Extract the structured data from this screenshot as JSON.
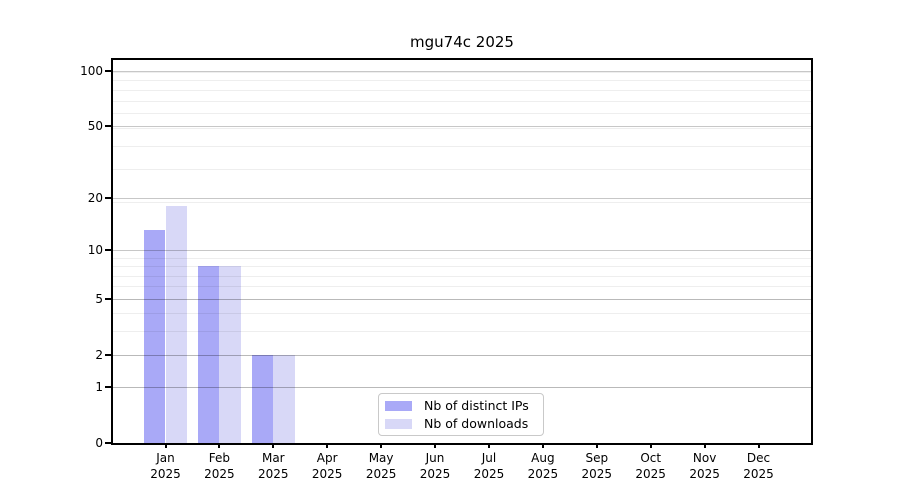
{
  "chart_data": {
    "type": "bar",
    "title": "mgu74c 2025",
    "categories": [
      "Jan",
      "Feb",
      "Mar",
      "Apr",
      "May",
      "Jun",
      "Jul",
      "Aug",
      "Sep",
      "Oct",
      "Nov",
      "Dec"
    ],
    "category_year": "2025",
    "series": [
      {
        "name": "Nb of distinct IPs",
        "color": "#a9a9f7",
        "values": [
          13,
          8,
          2,
          0,
          0,
          0,
          0,
          0,
          0,
          0,
          0,
          0
        ]
      },
      {
        "name": "Nb of downloads",
        "color": "#d8d8f7",
        "values": [
          18,
          8,
          2,
          0,
          0,
          0,
          0,
          0,
          0,
          0,
          0,
          0
        ]
      }
    ],
    "y_scale": "log1p",
    "ylim": [
      0,
      115
    ],
    "y_tick_labels": [
      100,
      50,
      20,
      10,
      5,
      2,
      1,
      0
    ],
    "y_major_gridlines": [
      1,
      2,
      5,
      10,
      20,
      50,
      100
    ],
    "y_minor_gridlines": [
      1,
      2,
      3,
      4,
      5,
      6,
      7,
      8,
      9,
      19,
      29,
      39,
      49,
      59,
      69,
      79,
      89,
      99
    ],
    "xlabel": "",
    "ylabel": "",
    "grid": true,
    "legend_position": "lower-center",
    "plot_background": "#ffffff"
  }
}
